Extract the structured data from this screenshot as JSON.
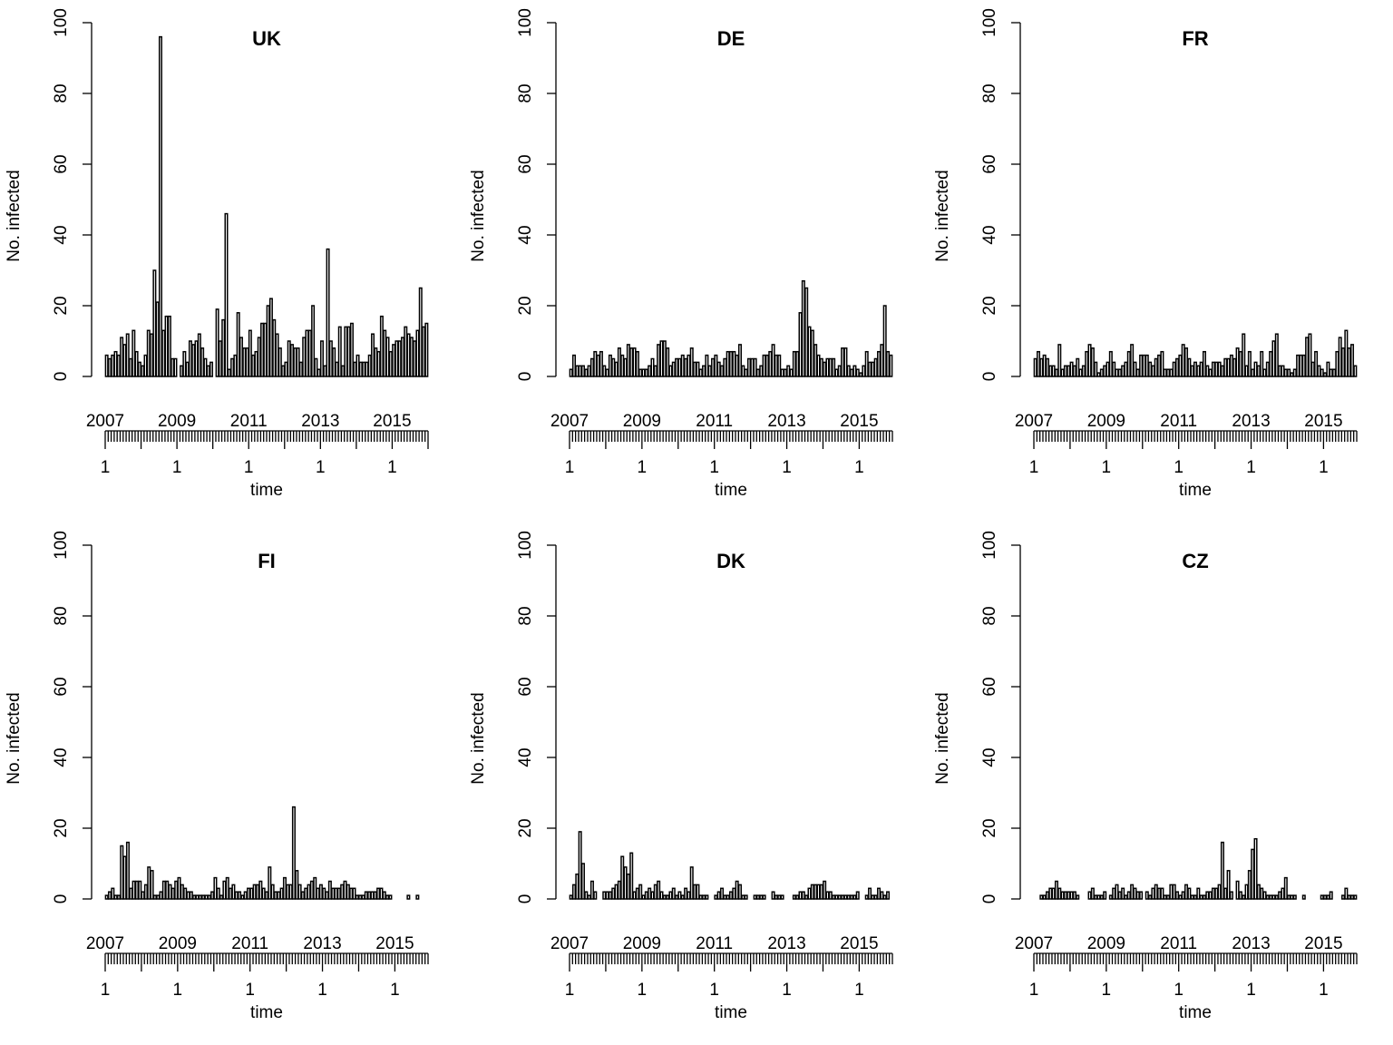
{
  "chart_data": [
    {
      "type": "bar",
      "title": "UK",
      "ylabel": "No. infected",
      "xlabel": "time",
      "ylim": [
        0,
        100
      ],
      "yticks": [
        0,
        20,
        40,
        60,
        80,
        100
      ],
      "year_labels": [
        "2007",
        "2009",
        "2011",
        "2013",
        "2015"
      ],
      "time_tick_labels": [
        "1",
        "1",
        "1",
        "1",
        "1"
      ],
      "values": [
        6,
        5,
        6,
        7,
        6,
        11,
        9,
        12,
        5,
        13,
        7,
        4,
        3,
        6,
        13,
        12,
        30,
        21,
        96,
        13,
        17,
        17,
        5,
        5,
        0,
        3,
        7,
        4,
        10,
        9,
        10,
        12,
        8,
        5,
        3,
        4,
        0,
        19,
        10,
        16,
        46,
        2,
        5,
        6,
        18,
        11,
        8,
        8,
        13,
        6,
        7,
        11,
        15,
        15,
        20,
        22,
        16,
        12,
        8,
        3,
        4,
        10,
        9,
        8,
        8,
        4,
        11,
        13,
        13,
        20,
        5,
        2,
        10,
        3,
        36,
        10,
        8,
        4,
        14,
        3,
        14,
        14,
        15,
        4,
        6,
        4,
        4,
        4,
        6,
        12,
        8,
        7,
        17,
        13,
        11,
        7,
        9,
        10,
        10,
        11,
        14,
        12,
        11,
        10,
        13,
        25,
        14,
        15
      ]
    },
    {
      "type": "bar",
      "title": "DE",
      "ylabel": "No. infected",
      "xlabel": "time",
      "ylim": [
        0,
        100
      ],
      "yticks": [
        0,
        20,
        40,
        60,
        80,
        100
      ],
      "year_labels": [
        "2007",
        "2009",
        "2011",
        "2013",
        "2015"
      ],
      "time_tick_labels": [
        "1",
        "1",
        "1",
        "1",
        "1"
      ],
      "values": [
        2,
        6,
        3,
        3,
        3,
        2,
        3,
        5,
        7,
        6,
        7,
        3,
        2,
        6,
        5,
        4,
        8,
        6,
        5,
        9,
        8,
        8,
        7,
        2,
        2,
        2,
        3,
        5,
        3,
        9,
        10,
        10,
        8,
        3,
        4,
        5,
        5,
        6,
        5,
        6,
        8,
        4,
        4,
        2,
        3,
        6,
        3,
        5,
        6,
        4,
        3,
        5,
        7,
        7,
        7,
        6,
        9,
        3,
        2,
        5,
        5,
        5,
        2,
        3,
        6,
        6,
        7,
        9,
        6,
        6,
        2,
        2,
        3,
        2,
        7,
        7,
        18,
        27,
        25,
        14,
        13,
        9,
        6,
        5,
        4,
        5,
        5,
        5,
        2,
        3,
        8,
        8,
        3,
        2,
        3,
        2,
        1,
        3,
        7,
        4,
        4,
        5,
        7,
        9,
        20,
        7,
        6
      ]
    },
    {
      "type": "bar",
      "title": "FR",
      "ylabel": "No. infected",
      "xlabel": "time",
      "ylim": [
        0,
        100
      ],
      "yticks": [
        0,
        20,
        40,
        60,
        80,
        100
      ],
      "year_labels": [
        "2007",
        "2009",
        "2011",
        "2013",
        "2015"
      ],
      "time_tick_labels": [
        "1",
        "1",
        "1",
        "1",
        "1"
      ],
      "values": [
        5,
        7,
        5,
        6,
        5,
        3,
        3,
        2,
        9,
        2,
        3,
        3,
        4,
        3,
        5,
        2,
        3,
        7,
        9,
        8,
        4,
        1,
        2,
        3,
        4,
        7,
        4,
        2,
        2,
        3,
        4,
        7,
        9,
        4,
        2,
        6,
        6,
        6,
        4,
        3,
        5,
        6,
        7,
        2,
        2,
        2,
        4,
        5,
        6,
        9,
        8,
        5,
        3,
        4,
        3,
        4,
        7,
        3,
        2,
        4,
        4,
        4,
        3,
        5,
        5,
        6,
        5,
        8,
        7,
        12,
        3,
        7,
        2,
        4,
        3,
        7,
        2,
        4,
        7,
        10,
        12,
        3,
        3,
        2,
        2,
        1,
        2,
        6,
        6,
        6,
        11,
        12,
        4,
        7,
        3,
        2,
        1,
        4,
        2,
        2,
        7,
        11,
        8,
        13,
        8,
        9,
        3
      ]
    },
    {
      "type": "bar",
      "title": "FI",
      "ylabel": "No. infected",
      "xlabel": "time",
      "ylim": [
        0,
        100
      ],
      "yticks": [
        0,
        20,
        40,
        60,
        80,
        100
      ],
      "year_labels": [
        "2007",
        "2009",
        "2011",
        "2013",
        "2015"
      ],
      "time_tick_labels": [
        "1",
        "1",
        "1",
        "1",
        "1"
      ],
      "values": [
        1,
        2,
        3,
        1,
        1,
        15,
        12,
        16,
        3,
        5,
        5,
        5,
        2,
        4,
        9,
        8,
        1,
        1,
        2,
        5,
        5,
        4,
        3,
        5,
        6,
        4,
        3,
        2,
        2,
        1,
        1,
        1,
        1,
        1,
        1,
        2,
        6,
        3,
        1,
        5,
        6,
        3,
        4,
        2,
        2,
        1,
        2,
        3,
        3,
        4,
        4,
        5,
        3,
        2,
        9,
        4,
        2,
        2,
        3,
        6,
        4,
        4,
        26,
        8,
        4,
        2,
        3,
        4,
        5,
        6,
        3,
        4,
        3,
        2,
        5,
        3,
        3,
        3,
        4,
        5,
        4,
        3,
        3,
        1,
        1,
        1,
        2,
        2,
        2,
        2,
        3,
        3,
        2,
        1,
        1,
        0,
        0,
        0,
        0,
        0,
        1,
        0,
        0,
        1,
        0,
        0,
        0
      ]
    },
    {
      "type": "bar",
      "title": "DK",
      "ylabel": "No. infected",
      "xlabel": "time",
      "ylim": [
        0,
        100
      ],
      "yticks": [
        0,
        20,
        40,
        60,
        80,
        100
      ],
      "year_labels": [
        "2007",
        "2009",
        "2011",
        "2013",
        "2015"
      ],
      "time_tick_labels": [
        "1",
        "1",
        "1",
        "1",
        "1"
      ],
      "values": [
        1,
        4,
        7,
        19,
        10,
        2,
        1,
        5,
        2,
        0,
        0,
        2,
        2,
        2,
        3,
        4,
        5,
        12,
        9,
        7,
        13,
        2,
        3,
        4,
        1,
        2,
        3,
        2,
        4,
        5,
        2,
        1,
        1,
        2,
        3,
        1,
        2,
        1,
        3,
        2,
        9,
        4,
        4,
        1,
        1,
        1,
        0,
        0,
        1,
        2,
        3,
        1,
        1,
        2,
        3,
        5,
        4,
        1,
        1,
        0,
        0,
        1,
        1,
        1,
        1,
        0,
        0,
        2,
        1,
        1,
        1,
        0,
        0,
        0,
        1,
        1,
        2,
        2,
        1,
        3,
        4,
        4,
        4,
        4,
        5,
        2,
        2,
        1,
        1,
        1,
        1,
        1,
        1,
        1,
        1,
        2,
        0,
        0,
        1,
        3,
        1,
        1,
        3,
        2,
        1,
        2,
        0
      ]
    },
    {
      "type": "bar",
      "title": "CZ",
      "ylabel": "No. infected",
      "xlabel": "time",
      "ylim": [
        0,
        100
      ],
      "yticks": [
        0,
        20,
        40,
        60,
        80,
        100
      ],
      "year_labels": [
        "2007",
        "2009",
        "2011",
        "2013",
        "2015"
      ],
      "time_tick_labels": [
        "1",
        "1",
        "1",
        "1",
        "1"
      ],
      "values": [
        0,
        0,
        1,
        1,
        2,
        3,
        3,
        5,
        3,
        2,
        2,
        2,
        2,
        2,
        1,
        0,
        0,
        0,
        2,
        3,
        1,
        1,
        1,
        2,
        0,
        1,
        3,
        4,
        2,
        3,
        1,
        2,
        4,
        3,
        2,
        2,
        0,
        2,
        1,
        3,
        4,
        3,
        3,
        1,
        1,
        4,
        4,
        2,
        1,
        2,
        4,
        3,
        1,
        1,
        3,
        1,
        1,
        2,
        2,
        3,
        3,
        4,
        16,
        3,
        8,
        2,
        0,
        5,
        2,
        1,
        4,
        8,
        14,
        17,
        4,
        3,
        2,
        1,
        1,
        1,
        1,
        2,
        3,
        6,
        1,
        1,
        1,
        0,
        0,
        1,
        0,
        0,
        0,
        0,
        0,
        1,
        1,
        1,
        2,
        0,
        0,
        0,
        1,
        3,
        1,
        1,
        1
      ]
    }
  ]
}
